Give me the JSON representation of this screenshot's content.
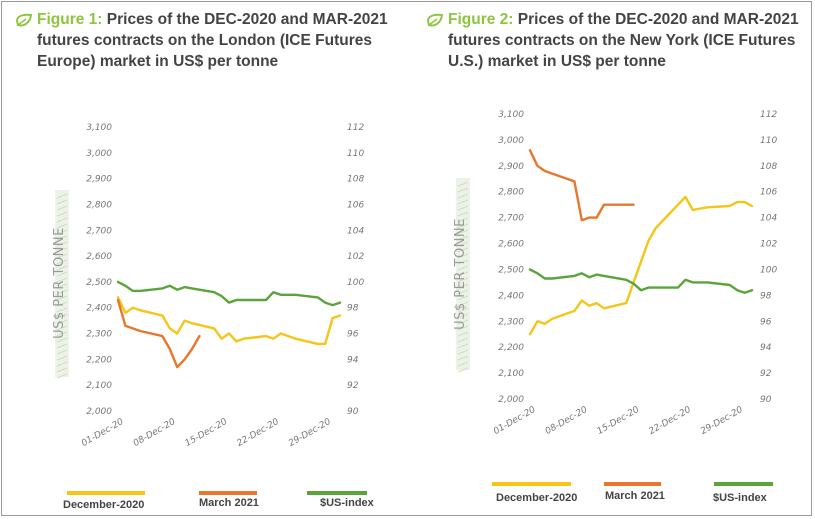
{
  "figures": [
    {
      "title_lead": "Figure 1:",
      "title_lines": [
        "Prices of the DEC-2020 and MAR-2021",
        "futures contracts on the London (ICE Futures",
        "Europe) market in US$ per tonne"
      ]
    },
    {
      "title_lead": "Figure 2:",
      "title_lines": [
        "Prices of the DEC-2020 and MAR-2021",
        "futures contracts on the New York (ICE Futures",
        "U.S.) market in US$ per tonne"
      ]
    }
  ],
  "colors": {
    "accent": "#8cc63f",
    "december": "#f5c518",
    "march": "#e8762c",
    "usindex": "#5ba33b"
  },
  "chart_data": [
    {
      "type": "line",
      "title": "Figure 1: Prices of the DEC-2020 and MAR-2021 futures contracts on the London (ICE Futures Europe) market in US$ per tonne",
      "ylabel": "US$ PER TONNE",
      "xlabel": "",
      "ylim": [
        2000,
        3100
      ],
      "y_ticks": [
        "3,100",
        "3,000",
        "2,900",
        "2,800",
        "2,700",
        "2,600",
        "2,500",
        "2,400",
        "2,300",
        "2,200",
        "2,100",
        "2,000"
      ],
      "y2lim": [
        90,
        112
      ],
      "y2_ticks": [
        "112",
        "110",
        "108",
        "106",
        "104",
        "102",
        "100",
        "98",
        "96",
        "94",
        "92",
        "90"
      ],
      "x_tick_labels": [
        "01-Dec-20",
        "08-Dec-20",
        "15-Dec-20",
        "22-Dec-20",
        "29-Dec-20"
      ],
      "x_tick_days": [
        1,
        8,
        15,
        22,
        29
      ],
      "x_range_days": [
        1,
        31
      ],
      "legend": [
        "December-2020",
        "March 2021",
        "$US-index"
      ],
      "series": [
        {
          "name": "December-2020",
          "axis": "left",
          "x": [
            1,
            2,
            3,
            4,
            7,
            8,
            9,
            10,
            11,
            14,
            15,
            16,
            17,
            18,
            21,
            22,
            23,
            24,
            25,
            28,
            29,
            30,
            31
          ],
          "values": [
            2440,
            2380,
            2400,
            2390,
            2370,
            2320,
            2300,
            2350,
            2340,
            2320,
            2280,
            2300,
            2270,
            2280,
            2290,
            2280,
            2300,
            2290,
            2280,
            2260,
            2260,
            2360,
            2370
          ]
        },
        {
          "name": "March 2021",
          "axis": "left",
          "x": [
            1,
            2,
            3,
            4,
            7,
            8,
            9,
            10,
            11,
            12
          ],
          "values": [
            2430,
            2330,
            2320,
            2310,
            2290,
            2240,
            2170,
            2200,
            2240,
            2290
          ]
        },
        {
          "name": "$US-index",
          "axis": "right",
          "x": [
            1,
            2,
            3,
            4,
            7,
            8,
            9,
            10,
            11,
            14,
            15,
            16,
            17,
            18,
            21,
            22,
            23,
            24,
            25,
            28,
            29,
            30,
            31
          ],
          "values": [
            100.0,
            99.7,
            99.3,
            99.3,
            99.5,
            99.7,
            99.4,
            99.6,
            99.5,
            99.2,
            98.9,
            98.4,
            98.6,
            98.6,
            98.6,
            99.2,
            99.0,
            99.0,
            99.0,
            98.8,
            98.4,
            98.2,
            98.4
          ]
        }
      ]
    },
    {
      "type": "line",
      "title": "Figure 2: Prices of the DEC-2020 and MAR-2021 futures contracts on the New York (ICE Futures U.S.) market in US$ per tonne",
      "ylabel": "US$ PER TONNE",
      "xlabel": "",
      "ylim": [
        2000,
        3100
      ],
      "y_ticks": [
        "3,100",
        "3,000",
        "2,900",
        "2,800",
        "2,700",
        "2,600",
        "2,500",
        "2,400",
        "2,300",
        "2,200",
        "2,100",
        "2,000"
      ],
      "y2lim": [
        90,
        112
      ],
      "y2_ticks": [
        "112",
        "110",
        "108",
        "106",
        "104",
        "102",
        "100",
        "98",
        "96",
        "94",
        "92",
        "90"
      ],
      "x_tick_labels": [
        "01-Dec-20",
        "08-Dec-20",
        "15-Dec-20",
        "22-Dec-20",
        "29-Dec-20"
      ],
      "x_tick_days": [
        1,
        8,
        15,
        22,
        29
      ],
      "x_range_days": [
        1,
        31
      ],
      "legend": [
        "December-2020",
        "March 2021",
        "$US-index"
      ],
      "series": [
        {
          "name": "December-2020",
          "axis": "left",
          "x": [
            1,
            2,
            3,
            4,
            7,
            8,
            9,
            10,
            11,
            14,
            15,
            16,
            17,
            18,
            21,
            22,
            23,
            24,
            25,
            28,
            29,
            30,
            31
          ],
          "values": [
            2250,
            2300,
            2290,
            2310,
            2340,
            2380,
            2360,
            2370,
            2350,
            2370,
            2450,
            2530,
            2610,
            2660,
            2750,
            2780,
            2730,
            2735,
            2740,
            2745,
            2760,
            2760,
            2745
          ]
        },
        {
          "name": "March 2021",
          "axis": "left",
          "x": [
            1,
            2,
            3,
            4,
            7,
            8,
            9,
            10,
            11,
            14,
            15
          ],
          "values": [
            2960,
            2900,
            2880,
            2870,
            2840,
            2690,
            2700,
            2700,
            2750,
            2750,
            2750
          ]
        },
        {
          "name": "$US-index",
          "axis": "right",
          "x": [
            1,
            2,
            3,
            4,
            7,
            8,
            9,
            10,
            11,
            14,
            15,
            16,
            17,
            18,
            21,
            22,
            23,
            24,
            25,
            28,
            29,
            30,
            31
          ],
          "values": [
            100.0,
            99.7,
            99.3,
            99.3,
            99.5,
            99.7,
            99.4,
            99.6,
            99.5,
            99.2,
            98.9,
            98.4,
            98.6,
            98.6,
            98.6,
            99.2,
            99.0,
            99.0,
            99.0,
            98.8,
            98.4,
            98.2,
            98.4
          ]
        }
      ]
    }
  ]
}
